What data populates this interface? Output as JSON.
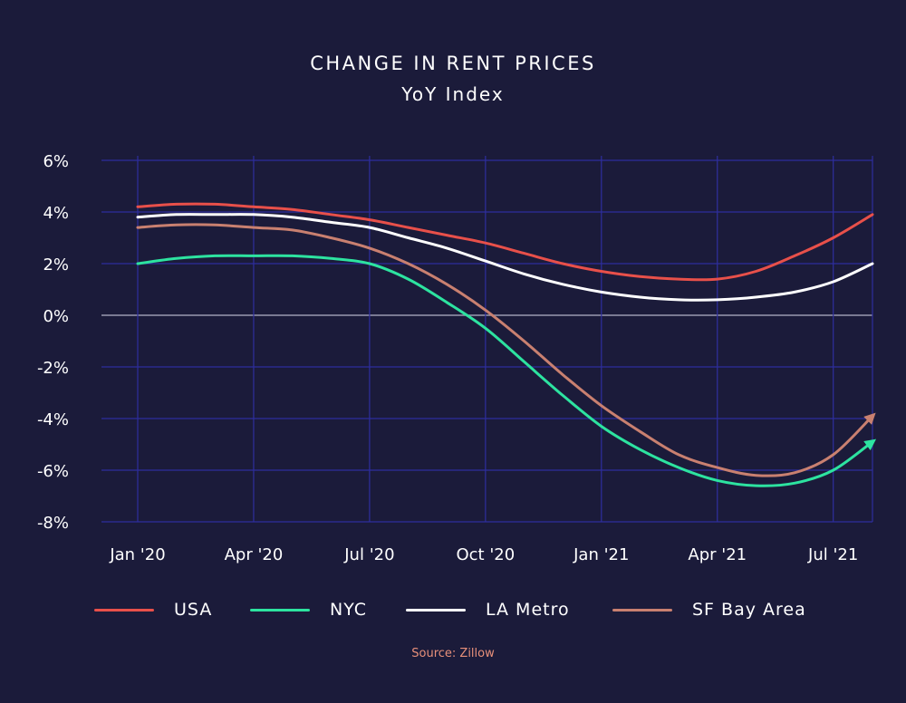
{
  "title": "CHANGE IN RENT PRICES",
  "subtitle": "YoY Index",
  "source": "Source: Zillow",
  "colors": {
    "background": "#1b1b3a",
    "grid": "#2e2e9e",
    "zero_line": "#9a9ab0",
    "USA": "#e8504a",
    "NYC": "#2de3a0",
    "LA Metro": "#ffffff",
    "SF Bay Area": "#c98070"
  },
  "chart_data": {
    "type": "line",
    "title": "CHANGE IN RENT PRICES",
    "subtitle": "YoY Index",
    "x": [
      "2020-01",
      "2020-02",
      "2020-03",
      "2020-04",
      "2020-05",
      "2020-06",
      "2020-07",
      "2020-08",
      "2020-09",
      "2020-10",
      "2020-11",
      "2020-12",
      "2021-01",
      "2021-02",
      "2021-03",
      "2021-04",
      "2021-05",
      "2021-06",
      "2021-07",
      "2021-08"
    ],
    "x_tick_labels": [
      "Jan '20",
      "Apr '20",
      "Jul '20",
      "Oct '20",
      "Jan '21",
      "Apr '21",
      "Jul '21"
    ],
    "y_tick_labels": [
      "6%",
      "4%",
      "2%",
      "0%",
      "-2%",
      "-4%",
      "-6%",
      "-8%"
    ],
    "ylim": [
      -8,
      6
    ],
    "grid": true,
    "legend_position": "bottom",
    "series": [
      {
        "name": "USA",
        "values": [
          4.2,
          4.3,
          4.3,
          4.2,
          4.1,
          3.9,
          3.7,
          3.4,
          3.1,
          2.8,
          2.4,
          2.0,
          1.7,
          1.5,
          1.4,
          1.4,
          1.7,
          2.3,
          3.0,
          3.9
        ]
      },
      {
        "name": "NYC",
        "values": [
          2.0,
          2.2,
          2.3,
          2.3,
          2.3,
          2.2,
          2.0,
          1.4,
          0.5,
          -0.5,
          -1.8,
          -3.1,
          -4.3,
          -5.2,
          -5.9,
          -6.4,
          -6.6,
          -6.5,
          -6.0,
          -4.9
        ]
      },
      {
        "name": "LA Metro",
        "values": [
          3.8,
          3.9,
          3.9,
          3.9,
          3.8,
          3.6,
          3.4,
          3.0,
          2.6,
          2.1,
          1.6,
          1.2,
          0.9,
          0.7,
          0.6,
          0.6,
          0.7,
          0.9,
          1.3,
          2.0
        ]
      },
      {
        "name": "SF Bay Area",
        "values": [
          3.4,
          3.5,
          3.5,
          3.4,
          3.3,
          3.0,
          2.6,
          2.0,
          1.2,
          0.2,
          -1.0,
          -2.3,
          -3.5,
          -4.5,
          -5.4,
          -5.9,
          -6.2,
          -6.1,
          -5.4,
          -3.9
        ]
      }
    ]
  }
}
